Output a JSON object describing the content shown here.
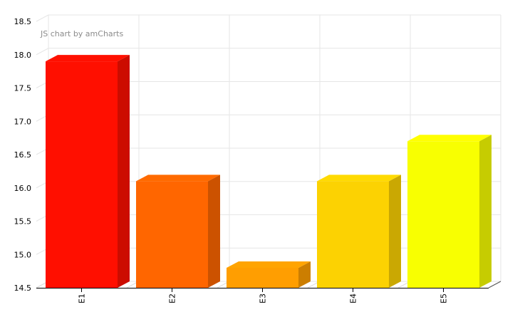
{
  "branding": {
    "label": "JS chart by amCharts",
    "color": "#8b8b8b"
  },
  "chart_data": {
    "type": "bar",
    "style": "3d-column",
    "title": "",
    "xlabel": "",
    "ylabel": "",
    "categories": [
      "E1",
      "E2",
      "E3",
      "E4",
      "E5"
    ],
    "values": [
      17.9,
      16.1,
      14.8,
      16.1,
      16.7
    ],
    "bar_colors": [
      "#FF0F00",
      "#FF6600",
      "#FF9E01",
      "#FCD202",
      "#F8FF01"
    ],
    "ylim": [
      14.5,
      18.5
    ],
    "ytick_step": 0.5,
    "ytick_labels": [
      "14.5",
      "15.0",
      "15.5",
      "16.0",
      "16.5",
      "17.0",
      "17.5",
      "18.0",
      "18.5"
    ],
    "grid": true,
    "legend_position": "none",
    "annotations": [
      "JS chart by amCharts"
    ]
  },
  "axis_style": {
    "grid_color": "#e6e6e6",
    "axis_color": "#000000",
    "label_color": "#000000"
  }
}
